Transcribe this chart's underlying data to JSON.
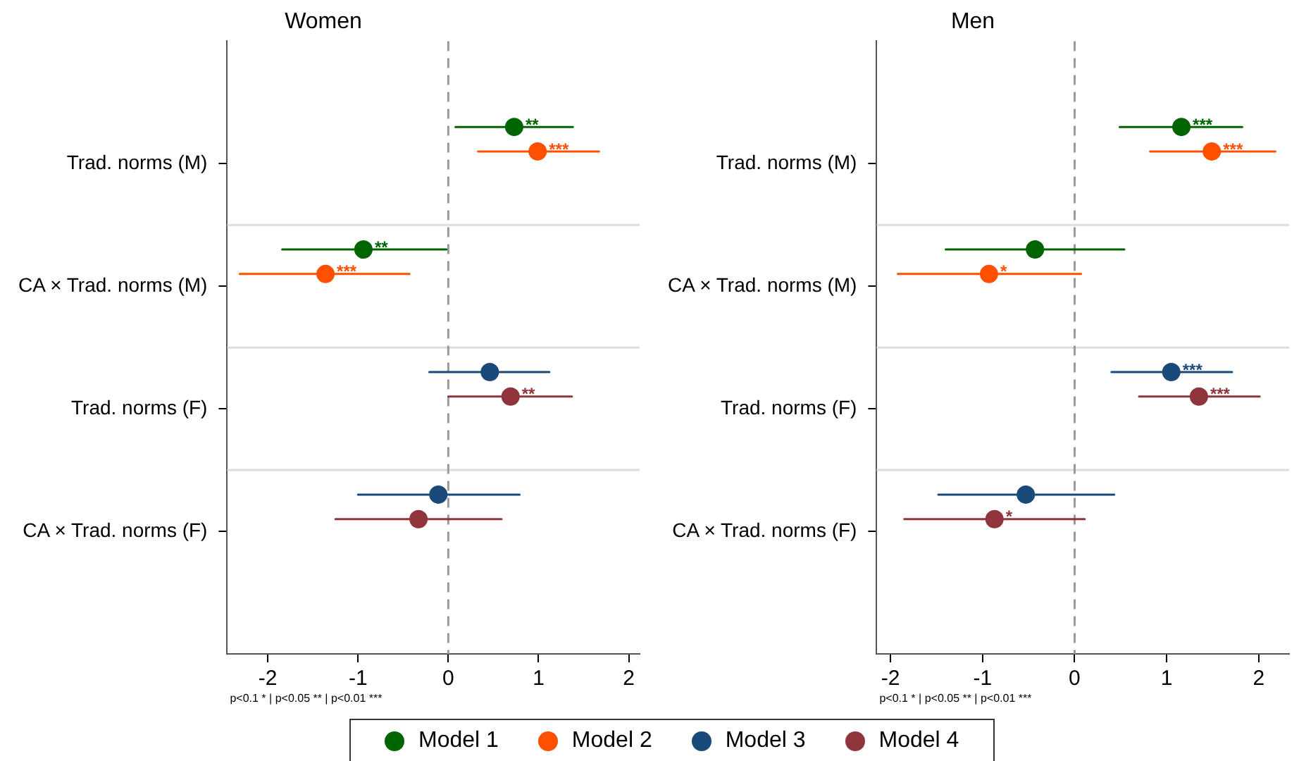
{
  "chart_data": [
    {
      "type": "scatter",
      "title": "Women",
      "orientation": "horizontal",
      "categories": [
        "Trad. norms (M)",
        "CA × Trad. norms (M)",
        "Trad. norms (F)",
        "CA × Trad. norms (F)"
      ],
      "xlim": [
        -2.45,
        2.12
      ],
      "xticks": [
        -2,
        -1,
        0,
        1,
        2
      ],
      "marker": "circle",
      "grid": "y",
      "legend": "bottom",
      "ref_lines": [
        {
          "axis": "x",
          "value": 0,
          "color": "#999999",
          "line_style": "dashed"
        }
      ],
      "annotations": [
        "p<0.1 * | p<0.05 ** | p<0.01 ***"
      ],
      "series": [
        {
          "name": "Model 1",
          "color": "#006400",
          "values": [
            0.73,
            -0.94,
            null,
            null
          ],
          "errors": [
            [
              0.08,
              1.38
            ],
            [
              -1.84,
              -0.02
            ],
            null,
            null
          ],
          "value_labels": [
            "**",
            "**",
            null,
            null
          ]
        },
        {
          "name": "Model 2",
          "color": "#ff5000",
          "values": [
            0.99,
            -1.36,
            null,
            null
          ],
          "errors": [
            [
              0.33,
              1.67
            ],
            [
              -2.31,
              -0.43
            ],
            null,
            null
          ],
          "value_labels": [
            "***",
            "***",
            null,
            null
          ]
        },
        {
          "name": "Model 3",
          "color": "#1a4a7a",
          "values": [
            null,
            null,
            0.46,
            -0.11
          ],
          "errors": [
            null,
            null,
            [
              -0.21,
              1.12
            ],
            [
              -1.0,
              0.79
            ]
          ],
          "value_labels": [
            null,
            null,
            null,
            null
          ]
        },
        {
          "name": "Model 4",
          "color": "#90353b",
          "values": [
            null,
            null,
            0.69,
            -0.33
          ],
          "errors": [
            null,
            null,
            [
              0.0,
              1.37
            ],
            [
              -1.25,
              0.59
            ]
          ],
          "value_labels": [
            null,
            null,
            "**",
            null
          ]
        }
      ]
    },
    {
      "type": "scatter",
      "title": "Men",
      "orientation": "horizontal",
      "categories": [
        "Trad. norms (M)",
        "CA × Trad. norms (M)",
        "Trad. norms (F)",
        "CA × Trad. norms (F)"
      ],
      "xlim": [
        -2.15,
        2.33
      ],
      "xticks": [
        -2,
        -1,
        0,
        1,
        2
      ],
      "marker": "circle",
      "grid": "y",
      "legend": "bottom",
      "ref_lines": [
        {
          "axis": "x",
          "value": 0,
          "color": "#999999",
          "line_style": "dashed"
        }
      ],
      "annotations": [
        "p<0.1 * | p<0.05 ** | p<0.01 ***"
      ],
      "series": [
        {
          "name": "Model 1",
          "color": "#006400",
          "values": [
            1.16,
            -0.43,
            null,
            null
          ],
          "errors": [
            [
              0.49,
              1.82
            ],
            [
              -1.4,
              0.54
            ],
            null,
            null
          ],
          "value_labels": [
            "***",
            null,
            null,
            null
          ]
        },
        {
          "name": "Model 2",
          "color": "#ff5000",
          "values": [
            1.49,
            -0.93,
            null,
            null
          ],
          "errors": [
            [
              0.82,
              2.18
            ],
            [
              -1.92,
              0.07
            ],
            null,
            null
          ],
          "value_labels": [
            "***",
            "*",
            null,
            null
          ]
        },
        {
          "name": "Model 3",
          "color": "#1a4a7a",
          "values": [
            null,
            null,
            1.05,
            -0.53
          ],
          "errors": [
            null,
            null,
            [
              0.4,
              1.71
            ],
            [
              -1.48,
              0.43
            ]
          ],
          "value_labels": [
            null,
            null,
            "***",
            null
          ]
        },
        {
          "name": "Model 4",
          "color": "#90353b",
          "values": [
            null,
            null,
            1.35,
            -0.87
          ],
          "errors": [
            null,
            null,
            [
              0.7,
              2.01
            ],
            [
              -1.85,
              0.11
            ]
          ],
          "value_labels": [
            null,
            null,
            "***",
            "*"
          ]
        }
      ]
    }
  ]
}
